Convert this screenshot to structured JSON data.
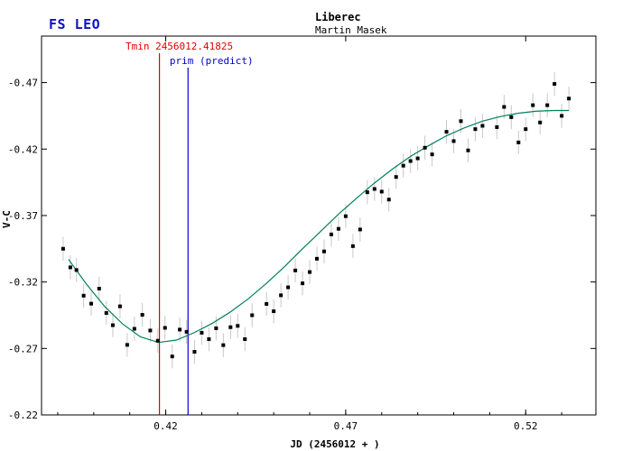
{
  "header": {
    "star": "FS LEO",
    "place": "Liberec",
    "observer": "Martin Masek"
  },
  "colors": {
    "title": "#1010c8",
    "tmin_line": "#e00000",
    "predict_line": "#0000d0",
    "fit_curve": "#008060",
    "points": "#000000",
    "error_bars": "#c8c8c8"
  },
  "chart_data": {
    "type": "scatter",
    "title": "FS LEO",
    "xlabel": "JD (2456012 + )",
    "ylabel": "V-C",
    "xlim": [
      0.3855,
      0.5395
    ],
    "ylim": [
      -0.22,
      -0.505
    ],
    "y_inverted": true,
    "x_ticks": [
      0.42,
      0.47,
      0.52
    ],
    "x_tick_labels": [
      "0.42",
      "0.47",
      "0.52"
    ],
    "y_ticks": [
      -0.47,
      -0.42,
      -0.37,
      -0.32,
      -0.27,
      -0.22
    ],
    "y_tick_labels": [
      "-0.47",
      "-0.42",
      "-0.37",
      "-0.32",
      "-0.27",
      "-0.22"
    ],
    "grid": false,
    "vlines": [
      {
        "x": 0.41825,
        "label": "Tmin 2456012.41825",
        "color": "#e00000"
      },
      {
        "x": 0.4262,
        "label": "prim (predict)",
        "color": "#0000d0"
      }
    ],
    "error": 0.009,
    "points": [
      {
        "x": 0.3915,
        "y": -0.345
      },
      {
        "x": 0.3935,
        "y": -0.331
      },
      {
        "x": 0.3952,
        "y": -0.329
      },
      {
        "x": 0.3972,
        "y": -0.3097
      },
      {
        "x": 0.3993,
        "y": -0.3037
      },
      {
        "x": 0.4015,
        "y": -0.315
      },
      {
        "x": 0.4035,
        "y": -0.2967
      },
      {
        "x": 0.4053,
        "y": -0.2875
      },
      {
        "x": 0.4073,
        "y": -0.3017
      },
      {
        "x": 0.4093,
        "y": -0.2727
      },
      {
        "x": 0.4113,
        "y": -0.2848
      },
      {
        "x": 0.4135,
        "y": -0.2953
      },
      {
        "x": 0.4157,
        "y": -0.2835
      },
      {
        "x": 0.4178,
        "y": -0.2758
      },
      {
        "x": 0.4198,
        "y": -0.2855
      },
      {
        "x": 0.4218,
        "y": -0.264
      },
      {
        "x": 0.4239,
        "y": -0.2842
      },
      {
        "x": 0.4258,
        "y": -0.2825
      },
      {
        "x": 0.428,
        "y": -0.2675
      },
      {
        "x": 0.43,
        "y": -0.2818
      },
      {
        "x": 0.432,
        "y": -0.277
      },
      {
        "x": 0.434,
        "y": -0.2852
      },
      {
        "x": 0.436,
        "y": -0.2725
      },
      {
        "x": 0.438,
        "y": -0.286
      },
      {
        "x": 0.44,
        "y": -0.287
      },
      {
        "x": 0.442,
        "y": -0.277
      },
      {
        "x": 0.444,
        "y": -0.295
      },
      {
        "x": 0.448,
        "y": -0.3035
      },
      {
        "x": 0.45,
        "y": -0.298
      },
      {
        "x": 0.452,
        "y": -0.31
      },
      {
        "x": 0.454,
        "y": -0.316
      },
      {
        "x": 0.456,
        "y": -0.3287
      },
      {
        "x": 0.458,
        "y": -0.319
      },
      {
        "x": 0.46,
        "y": -0.3275
      },
      {
        "x": 0.462,
        "y": -0.3375
      },
      {
        "x": 0.464,
        "y": -0.343
      },
      {
        "x": 0.466,
        "y": -0.3558
      },
      {
        "x": 0.468,
        "y": -0.36
      },
      {
        "x": 0.47,
        "y": -0.3695
      },
      {
        "x": 0.472,
        "y": -0.347
      },
      {
        "x": 0.474,
        "y": -0.3595
      },
      {
        "x": 0.476,
        "y": -0.3875
      },
      {
        "x": 0.478,
        "y": -0.39
      },
      {
        "x": 0.48,
        "y": -0.388
      },
      {
        "x": 0.482,
        "y": -0.382
      },
      {
        "x": 0.484,
        "y": -0.399
      },
      {
        "x": 0.486,
        "y": -0.4075
      },
      {
        "x": 0.488,
        "y": -0.411
      },
      {
        "x": 0.49,
        "y": -0.413
      },
      {
        "x": 0.492,
        "y": -0.421
      },
      {
        "x": 0.494,
        "y": -0.416
      },
      {
        "x": 0.498,
        "y": -0.433
      },
      {
        "x": 0.5,
        "y": -0.426
      },
      {
        "x": 0.502,
        "y": -0.441
      },
      {
        "x": 0.504,
        "y": -0.419
      },
      {
        "x": 0.506,
        "y": -0.435
      },
      {
        "x": 0.508,
        "y": -0.4375
      },
      {
        "x": 0.512,
        "y": -0.4365
      },
      {
        "x": 0.514,
        "y": -0.4517
      },
      {
        "x": 0.516,
        "y": -0.444
      },
      {
        "x": 0.518,
        "y": -0.425
      },
      {
        "x": 0.52,
        "y": -0.435
      },
      {
        "x": 0.522,
        "y": -0.453
      },
      {
        "x": 0.524,
        "y": -0.44
      },
      {
        "x": 0.526,
        "y": -0.453
      },
      {
        "x": 0.528,
        "y": -0.469
      },
      {
        "x": 0.53,
        "y": -0.445
      },
      {
        "x": 0.532,
        "y": -0.458
      }
    ],
    "fit": [
      {
        "x": 0.393,
        "y": -0.337
      },
      {
        "x": 0.398,
        "y": -0.3183
      },
      {
        "x": 0.403,
        "y": -0.3017
      },
      {
        "x": 0.408,
        "y": -0.2885
      },
      {
        "x": 0.413,
        "y": -0.2787
      },
      {
        "x": 0.418,
        "y": -0.2745
      },
      {
        "x": 0.423,
        "y": -0.2763
      },
      {
        "x": 0.428,
        "y": -0.282
      },
      {
        "x": 0.433,
        "y": -0.289
      },
      {
        "x": 0.438,
        "y": -0.2975
      },
      {
        "x": 0.443,
        "y": -0.3075
      },
      {
        "x": 0.448,
        "y": -0.319
      },
      {
        "x": 0.453,
        "y": -0.3315
      },
      {
        "x": 0.458,
        "y": -0.345
      },
      {
        "x": 0.463,
        "y": -0.358
      },
      {
        "x": 0.468,
        "y": -0.371
      },
      {
        "x": 0.473,
        "y": -0.383
      },
      {
        "x": 0.478,
        "y": -0.3945
      },
      {
        "x": 0.483,
        "y": -0.405
      },
      {
        "x": 0.488,
        "y": -0.4145
      },
      {
        "x": 0.493,
        "y": -0.4225
      },
      {
        "x": 0.498,
        "y": -0.43
      },
      {
        "x": 0.503,
        "y": -0.436
      },
      {
        "x": 0.508,
        "y": -0.441
      },
      {
        "x": 0.513,
        "y": -0.4445
      },
      {
        "x": 0.518,
        "y": -0.447
      },
      {
        "x": 0.523,
        "y": -0.4485
      },
      {
        "x": 0.528,
        "y": -0.449
      },
      {
        "x": 0.532,
        "y": -0.449
      }
    ]
  }
}
